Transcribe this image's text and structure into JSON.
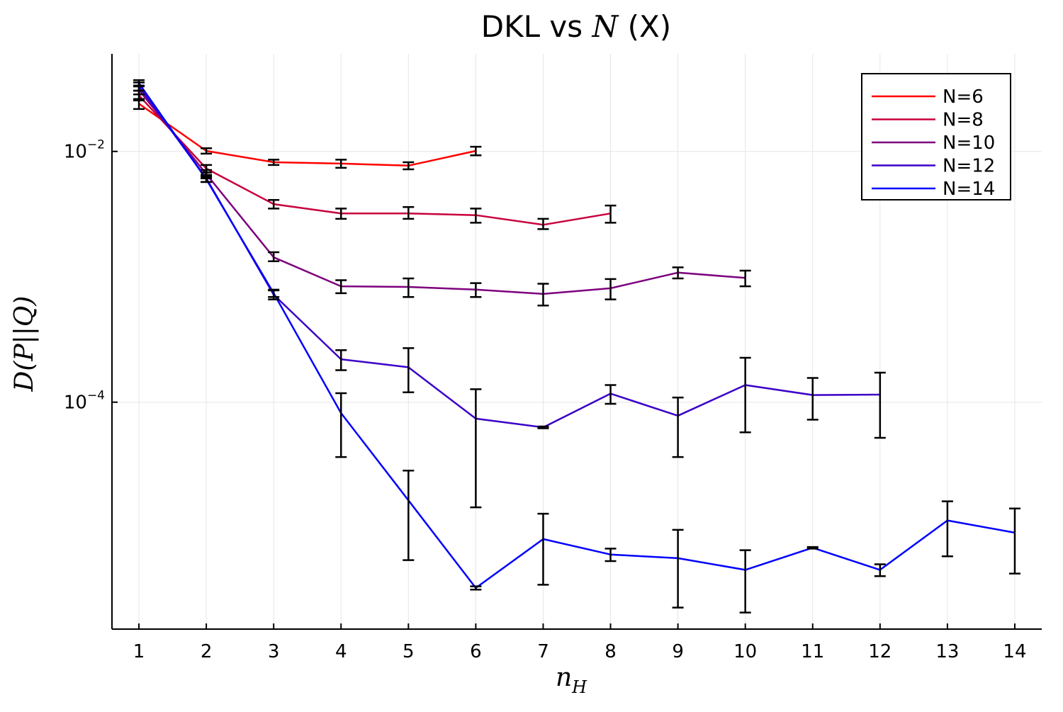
{
  "chart_data": {
    "type": "line",
    "title": "DKL vs N (X)",
    "title_parts": {
      "prefix": "DKL vs ",
      "symbol": "N",
      "suffix": " (X)"
    },
    "xlabel": {
      "base": "n",
      "subscript": "H"
    },
    "ylabel": "D(P||Q)",
    "y_scale": "log",
    "x_ticks": [
      1,
      2,
      3,
      4,
      5,
      6,
      7,
      8,
      9,
      10,
      11,
      12,
      13,
      14
    ],
    "y_ticks": [
      {
        "value": 0.01,
        "base": "10",
        "exponent": "−2"
      },
      {
        "value": 0.0001,
        "base": "10",
        "exponent": "−4"
      }
    ],
    "xlim": [
      0.6,
      14.4
    ],
    "ylim": [
      1.55e-06,
      0.06
    ],
    "grid": true,
    "legend_position": "top-right",
    "series": [
      {
        "name": "N=6",
        "color": "#ff0000",
        "x": [
          1,
          2,
          3,
          4,
          5,
          6
        ],
        "y": [
          0.024,
          0.0101,
          0.0082,
          0.008,
          0.0077,
          0.0101
        ],
        "err_low": [
          0.0218,
          0.0096,
          0.0078,
          0.0074,
          0.0072,
          0.0093
        ],
        "err_high": [
          0.0262,
          0.0106,
          0.0086,
          0.0086,
          0.0082,
          0.0109
        ]
      },
      {
        "name": "N=8",
        "color": "#c8003c",
        "x": [
          1,
          2,
          3,
          4,
          5,
          6,
          7,
          8
        ],
        "y": [
          0.028,
          0.0073,
          0.0038,
          0.0032,
          0.0032,
          0.0031,
          0.0026,
          0.0032
        ],
        "err_low": [
          0.0255,
          0.0068,
          0.0035,
          0.0029,
          0.0029,
          0.0027,
          0.0024,
          0.0027
        ],
        "err_high": [
          0.0305,
          0.0078,
          0.0041,
          0.0035,
          0.0036,
          0.0035,
          0.0029,
          0.0037
        ]
      },
      {
        "name": "N=10",
        "color": "#7d007d",
        "x": [
          1,
          2,
          3,
          4,
          5,
          6,
          7,
          8,
          9,
          10
        ],
        "y": [
          0.031,
          0.0066,
          0.00143,
          0.00084,
          0.00083,
          0.00079,
          0.00073,
          0.00081,
          0.00108,
          0.00098
        ],
        "err_low": [
          0.0285,
          0.0061,
          0.00133,
          0.00074,
          0.00069,
          0.00069,
          0.00059,
          0.00066,
          0.00097,
          0.00084
        ],
        "err_high": [
          0.0335,
          0.0071,
          0.00157,
          0.00094,
          0.00097,
          0.00089,
          0.00088,
          0.00096,
          0.00119,
          0.00112
        ]
      },
      {
        "name": "N=12",
        "color": "#3c00c8",
        "x": [
          1,
          2,
          3,
          4,
          5,
          6,
          7,
          8,
          9,
          10,
          11,
          12
        ],
        "y": [
          0.033,
          0.0061,
          0.00072,
          0.00022,
          0.00019,
          7.4e-05,
          6.3e-05,
          0.000117,
          7.8e-05,
          0.000137,
          0.000114,
          0.000115
        ],
        "err_low": [
          0.0305,
          0.0057,
          0.00066,
          0.00018,
          0.00012,
          1.45e-05,
          6.2e-05,
          9.7e-05,
          3.65e-05,
          5.75e-05,
          7.25e-05,
          5.2e-05
        ],
        "err_high": [
          0.0355,
          0.0065,
          0.00078,
          0.00026,
          0.00027,
          0.000127,
          6.4e-05,
          0.000137,
          0.000109,
          0.000226,
          0.000156,
          0.000172
        ]
      },
      {
        "name": "N=14",
        "color": "#0000ff",
        "x": [
          1,
          2,
          3,
          4,
          5,
          6,
          7,
          8,
          9,
          10,
          11,
          12,
          13,
          14
        ],
        "y": [
          0.035,
          0.006,
          0.00074,
          8.2e-05,
          1.65e-05,
          3.3e-06,
          8.1e-06,
          6.1e-06,
          5.7e-06,
          4.6e-06,
          6.9e-06,
          4.6e-06,
          1.14e-05,
          9.1e-06
        ],
        "err_low": [
          0.033,
          0.0057,
          0.00069,
          3.65e-05,
          5.5e-06,
          3.2e-06,
          3.5e-06,
          5.4e-06,
          2.3e-06,
          2.1e-06,
          6.8e-06,
          4.1e-06,
          5.9e-06,
          4.3e-06
        ],
        "err_high": [
          0.037,
          0.0063,
          0.00079,
          0.000118,
          2.85e-05,
          3.4e-06,
          1.29e-05,
          6.8e-06,
          9.6e-06,
          6.6e-06,
          7e-06,
          5.1e-06,
          1.62e-05,
          1.42e-05
        ]
      }
    ]
  }
}
